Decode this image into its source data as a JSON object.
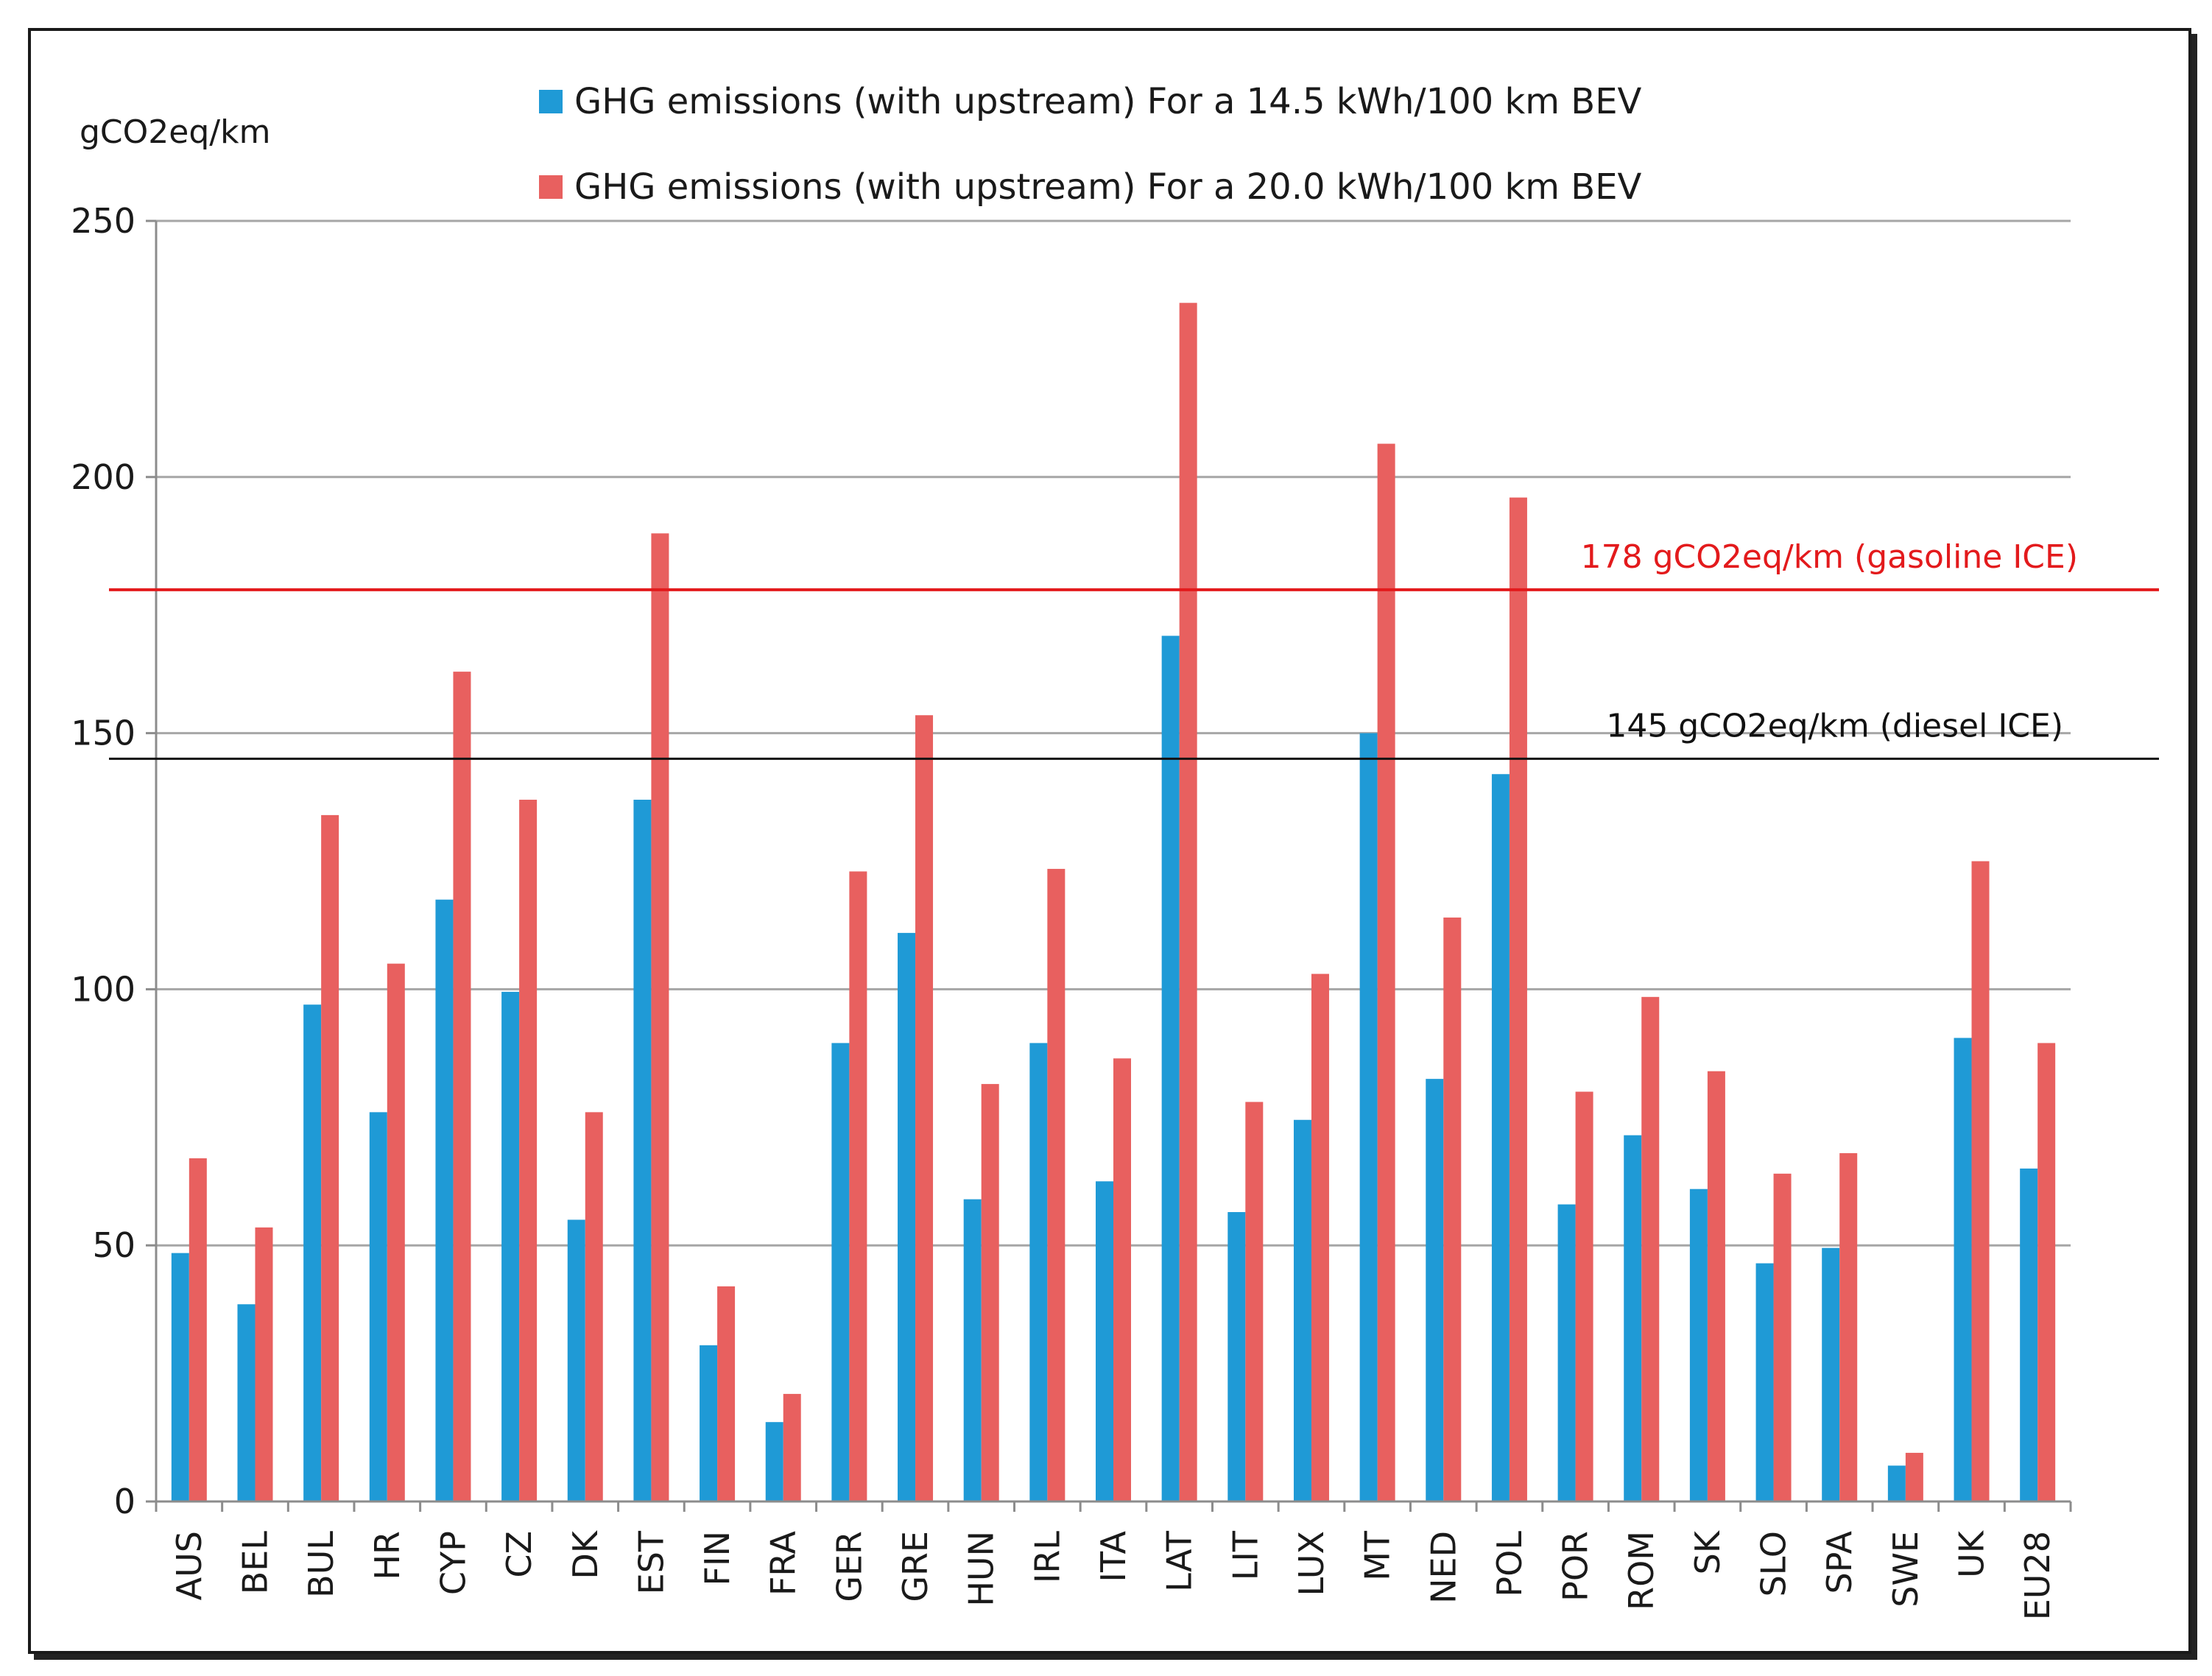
{
  "chart_data": {
    "type": "bar",
    "title": "",
    "xlabel": "",
    "ylabel": "gCO2eq/km",
    "ylim": [
      0,
      250
    ],
    "yticks": [
      0,
      50,
      100,
      150,
      200,
      250
    ],
    "grid": true,
    "legend_position": "top",
    "categories": [
      "AUS",
      "BEL",
      "BUL",
      "HR",
      "CYP",
      "CZ",
      "DK",
      "EST",
      "FIN",
      "FRA",
      "GER",
      "GRE",
      "HUN",
      "IRL",
      "ITA",
      "LAT",
      "LIT",
      "LUX",
      "MT",
      "NED",
      "POL",
      "POR",
      "ROM",
      "SK",
      "SLO",
      "SPA",
      "SWE",
      "UK",
      "EU28"
    ],
    "series": [
      {
        "name": "GHG emissions (with upstream) For a 14.5 kWh/100 km BEV",
        "color": "#1f9ad6",
        "values": [
          48.5,
          38.5,
          97,
          76,
          117.5,
          99.5,
          55,
          137,
          30.5,
          15.5,
          89.5,
          111,
          59,
          89.5,
          62.5,
          169,
          56.5,
          74.5,
          150,
          82.5,
          142,
          58,
          71.5,
          61,
          46.5,
          49.5,
          7,
          90.5,
          65
        ]
      },
      {
        "name": "GHG emissions (with upstream) For a 20.0 kWh/100 km BEV",
        "color": "#e8605f",
        "values": [
          67,
          53.5,
          134,
          105,
          162,
          137,
          76,
          189,
          42,
          21,
          123,
          153.5,
          81.5,
          123.5,
          86.5,
          234,
          78,
          103,
          206.5,
          114,
          196,
          80,
          98.5,
          84,
          64,
          68,
          9.5,
          125,
          89.5
        ]
      }
    ],
    "reference_lines": [
      {
        "label": "178 gCO2eq/km (gasoline ICE)",
        "value": 178,
        "color": "#e31a1c"
      },
      {
        "label": "145 gCO2eq/km (diesel ICE)",
        "value": 145,
        "color": "#111111"
      }
    ]
  }
}
